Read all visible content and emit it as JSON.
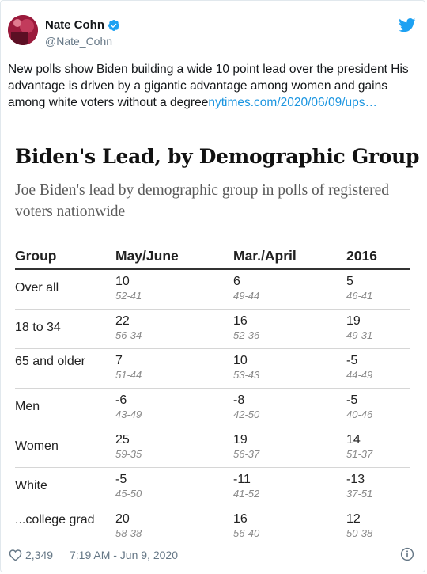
{
  "tweet": {
    "display_name": "Nate Cohn",
    "handle": "@Nate_Cohn",
    "text": "New polls show Biden building a wide 10 point lead over the president His advantage is driven by a gigantic advantage among women and gains among white voters without a degree",
    "link_text": "nytimes.com/2020/06/09/ups…",
    "likes": "2,349",
    "timestamp": "7:19 AM - Jun 9, 2020",
    "icons": [
      "verified-badge-icon",
      "twitter-bird-icon",
      "heart-icon",
      "info-icon"
    ],
    "colors": {
      "link": "#1b95e0",
      "verified": "#1da1f2",
      "twitter": "#1da1f2",
      "meta": "#657786"
    }
  },
  "figure": {
    "title": "Biden's Lead, by Demographic Group",
    "subtitle": "Joe Biden's lead by demographic group in polls of registered voters nationwide",
    "columns": [
      "Group",
      "May/June",
      "Mar./April",
      "2016"
    ],
    "rows": [
      {
        "group": "Over all",
        "cells": [
          [
            "10",
            "52-41"
          ],
          [
            "6",
            "49-44"
          ],
          [
            "5",
            "46-41"
          ]
        ]
      },
      {
        "group": "18 to 34",
        "cells": [
          [
            "22",
            "56-34"
          ],
          [
            "16",
            "52-36"
          ],
          [
            "19",
            "49-31"
          ]
        ]
      },
      {
        "group": "65 and older",
        "cells": [
          [
            "7",
            "51-44"
          ],
          [
            "10",
            "53-43"
          ],
          [
            "-5",
            "44-49"
          ]
        ]
      },
      {
        "group": "Men",
        "cells": [
          [
            "-6",
            "43-49"
          ],
          [
            "-8",
            "42-50"
          ],
          [
            "-5",
            "40-46"
          ]
        ]
      },
      {
        "group": "Women",
        "cells": [
          [
            "25",
            "59-35"
          ],
          [
            "19",
            "56-37"
          ],
          [
            "14",
            "51-37"
          ]
        ]
      },
      {
        "group": "White",
        "cells": [
          [
            "-5",
            "45-50"
          ],
          [
            "-11",
            "41-52"
          ],
          [
            "-13",
            "37-51"
          ]
        ]
      },
      {
        "group": "...college grad",
        "cells": [
          [
            "20",
            "58-38"
          ],
          [
            "16",
            "56-40"
          ],
          [
            "12",
            "50-38"
          ]
        ]
      }
    ]
  }
}
